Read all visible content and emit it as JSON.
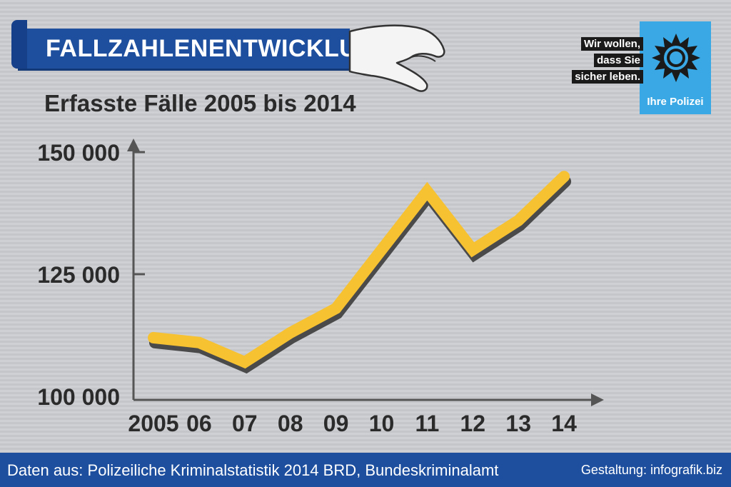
{
  "title": "FALLZAHLENENTWICKLUNG",
  "subtitle": "Erfasste Fälle 2005 bis 2014",
  "logo": {
    "line1": "Wir wollen,",
    "line2": "dass Sie",
    "line3": "sicher leben.",
    "line4": "Ihre Polizei"
  },
  "footer": {
    "source": "Daten aus: Polizeiliche Kriminalstatistik 2014 BRD, Bundeskriminalamt",
    "credit": "Gestaltung: infografik.biz"
  },
  "colors": {
    "line": "#f6c232",
    "line_shadow": "#4a4a4a",
    "banner": "#1e4f9e",
    "axis": "#555555"
  },
  "chart_data": {
    "type": "line",
    "title": "Erfasste Fälle 2005 bis 2014",
    "xlabel": "",
    "ylabel": "",
    "x_ticks": [
      "2005",
      "06",
      "07",
      "08",
      "09",
      "10",
      "11",
      "12",
      "13",
      "14"
    ],
    "y_ticks": [
      "150 000",
      "125 000",
      "100 000"
    ],
    "y_tick_values": [
      150000,
      125000,
      100000
    ],
    "ylim": [
      100000,
      150000
    ],
    "grid": false,
    "series": [
      {
        "values": [
          112000,
          111000,
          107000,
          113000,
          118000,
          130000,
          142000,
          130000,
          136000,
          145000
        ]
      }
    ]
  }
}
